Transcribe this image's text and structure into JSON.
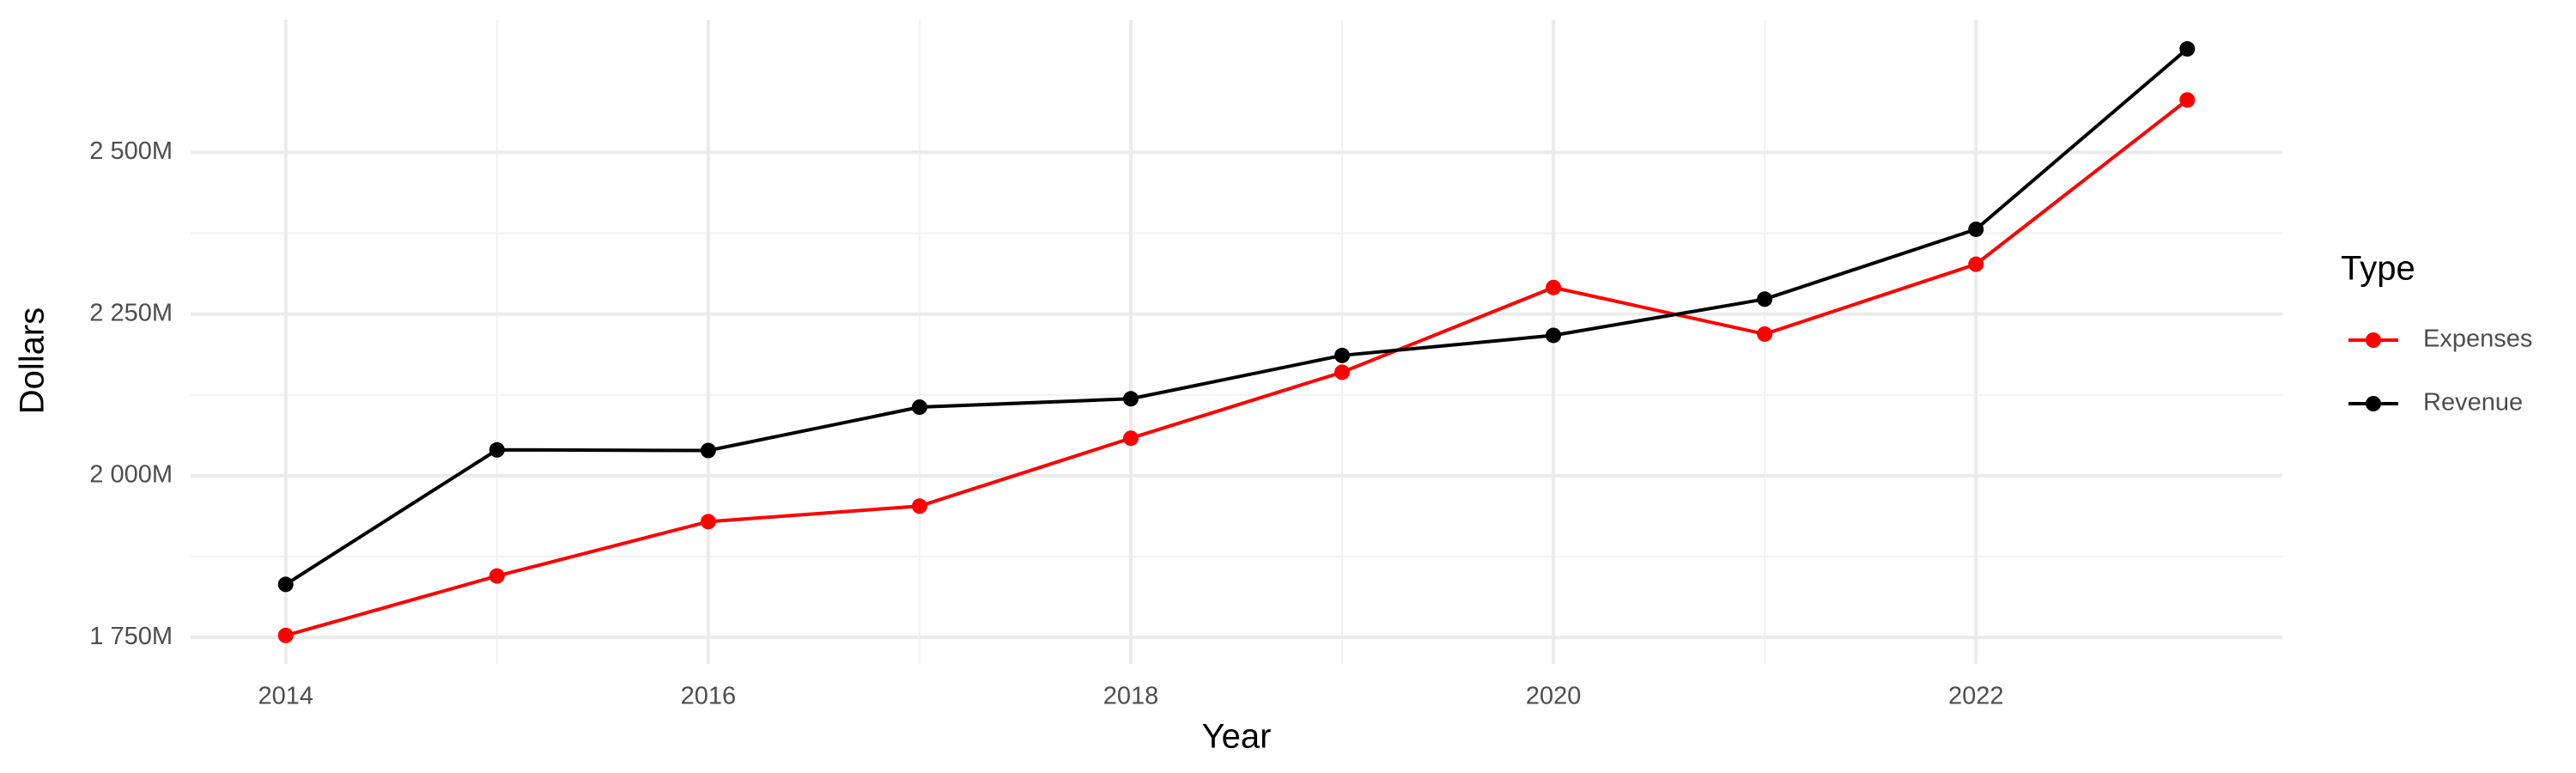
{
  "chart_data": {
    "type": "line",
    "x_label": "Year",
    "y_label": "Dollars",
    "legend_title": "Type",
    "legend_position": "right",
    "grid": true,
    "x": [
      2014,
      2015,
      2016,
      2017,
      2018,
      2019,
      2020,
      2021,
      2022,
      2023
    ],
    "series": [
      {
        "name": "Expenses",
        "color": "#ff0000",
        "values": [
          1753000000,
          1845000000,
          1929000000,
          1953000000,
          2058000000,
          2160000000,
          2291000000,
          2219000000,
          2327000000,
          2581000000
        ]
      },
      {
        "name": "Revenue",
        "color": "#000000",
        "values": [
          1832000000,
          2040000000,
          2039000000,
          2106000000,
          2119000000,
          2186000000,
          2217000000,
          2273000000,
          2381000000,
          2660000000
        ]
      }
    ],
    "xlim": [
      2013.55,
      2023.45
    ],
    "xticks": [
      2014,
      2016,
      2018,
      2020,
      2022
    ],
    "ylim": [
      1709000000,
      2705000000
    ],
    "yticks": [
      {
        "value": 1750000000,
        "label": "1 750M"
      },
      {
        "value": 2000000000,
        "label": "2 000M"
      },
      {
        "value": 2250000000,
        "label": "2 250M"
      },
      {
        "value": 2500000000,
        "label": "2 500M"
      }
    ]
  }
}
